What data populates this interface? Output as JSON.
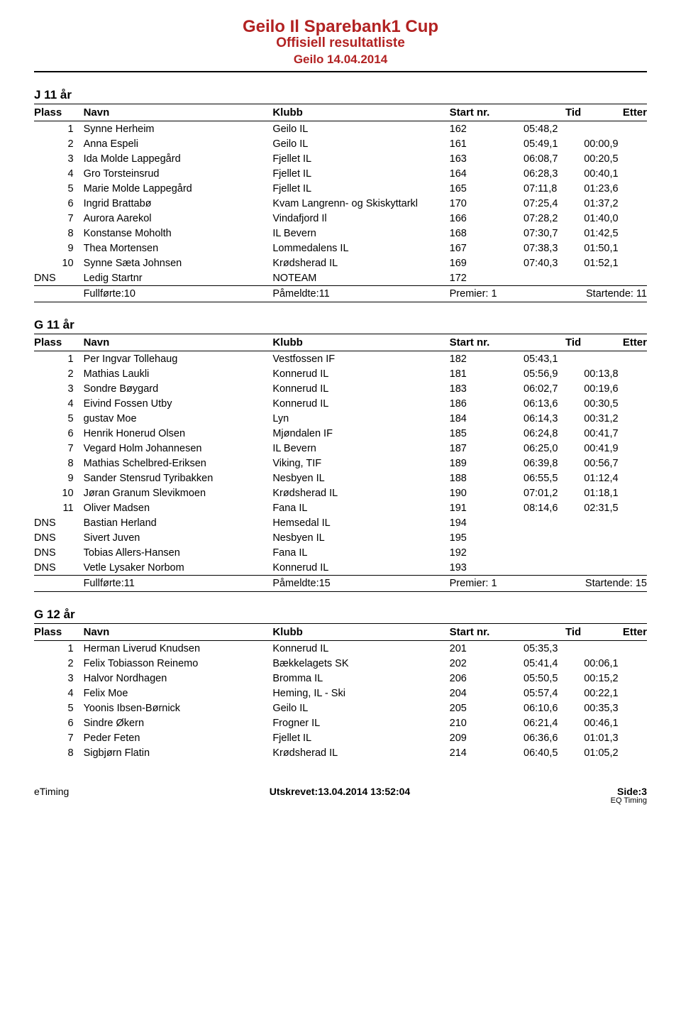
{
  "header": {
    "title": "Geilo Il Sparebank1 Cup",
    "subtitle1": "Offisiell resultatliste",
    "subtitle2": "Geilo 14.04.2014"
  },
  "colors": {
    "title": "#b22222",
    "border": "#000000",
    "bg": "#ffffff"
  },
  "col_headers": {
    "plass": "Plass",
    "navn": "Navn",
    "klubb": "Klubb",
    "start": "Start nr.",
    "tid": "Tid",
    "etter": "Etter"
  },
  "sections": [
    {
      "title": "J 11 år",
      "rows": [
        {
          "plass": "1",
          "navn": "Synne Herheim",
          "klubb": "Geilo IL",
          "start": "162",
          "tid": "05:48,2",
          "etter": ""
        },
        {
          "plass": "2",
          "navn": "Anna Espeli",
          "klubb": "Geilo IL",
          "start": "161",
          "tid": "05:49,1",
          "etter": "00:00,9"
        },
        {
          "plass": "3",
          "navn": "Ida Molde Lappegård",
          "klubb": "Fjellet IL",
          "start": "163",
          "tid": "06:08,7",
          "etter": "00:20,5"
        },
        {
          "plass": "4",
          "navn": "Gro Torsteinsrud",
          "klubb": "Fjellet IL",
          "start": "164",
          "tid": "06:28,3",
          "etter": "00:40,1"
        },
        {
          "plass": "5",
          "navn": "Marie Molde Lappegård",
          "klubb": "Fjellet IL",
          "start": "165",
          "tid": "07:11,8",
          "etter": "01:23,6"
        },
        {
          "plass": "6",
          "navn": "Ingrid Brattabø",
          "klubb": "Kvam Langrenn- og Skiskyttarkl",
          "start": "170",
          "tid": "07:25,4",
          "etter": "01:37,2"
        },
        {
          "plass": "7",
          "navn": "Aurora Aarekol",
          "klubb": "Vindafjord Il",
          "start": "166",
          "tid": "07:28,2",
          "etter": "01:40,0"
        },
        {
          "plass": "8",
          "navn": "Konstanse Moholth",
          "klubb": "IL Bevern",
          "start": "168",
          "tid": "07:30,7",
          "etter": "01:42,5"
        },
        {
          "plass": "9",
          "navn": "Thea Mortensen",
          "klubb": "Lommedalens IL",
          "start": "167",
          "tid": "07:38,3",
          "etter": "01:50,1"
        },
        {
          "plass": "10",
          "navn": "Synne Sæta Johnsen",
          "klubb": "Krødsherad IL",
          "start": "169",
          "tid": "07:40,3",
          "etter": "01:52,1"
        },
        {
          "plass": "DNS",
          "navn": "Ledig Startnr",
          "klubb": "NOTEAM",
          "start": "172",
          "tid": "",
          "etter": ""
        }
      ],
      "summary": {
        "fullforte": "Fullførte:10",
        "pameldte": "Påmeldte:11",
        "premier": "Premier: 1",
        "startende": "Startende: 11"
      }
    },
    {
      "title": "G 11 år",
      "rows": [
        {
          "plass": "1",
          "navn": "Per Ingvar Tollehaug",
          "klubb": "Vestfossen IF",
          "start": "182",
          "tid": "05:43,1",
          "etter": ""
        },
        {
          "plass": "2",
          "navn": "Mathias Laukli",
          "klubb": "Konnerud IL",
          "start": "181",
          "tid": "05:56,9",
          "etter": "00:13,8"
        },
        {
          "plass": "3",
          "navn": "Sondre Bøygard",
          "klubb": "Konnerud IL",
          "start": "183",
          "tid": "06:02,7",
          "etter": "00:19,6"
        },
        {
          "plass": "4",
          "navn": "Eivind Fossen Utby",
          "klubb": "Konnerud IL",
          "start": "186",
          "tid": "06:13,6",
          "etter": "00:30,5"
        },
        {
          "plass": "5",
          "navn": "gustav Moe",
          "klubb": "Lyn",
          "start": "184",
          "tid": "06:14,3",
          "etter": "00:31,2"
        },
        {
          "plass": "6",
          "navn": "Henrik Honerud Olsen",
          "klubb": "Mjøndalen IF",
          "start": "185",
          "tid": "06:24,8",
          "etter": "00:41,7"
        },
        {
          "plass": "7",
          "navn": "Vegard Holm Johannesen",
          "klubb": "IL Bevern",
          "start": "187",
          "tid": "06:25,0",
          "etter": "00:41,9"
        },
        {
          "plass": "8",
          "navn": "Mathias Schelbred-Eriksen",
          "klubb": "Viking, TIF",
          "start": "189",
          "tid": "06:39,8",
          "etter": "00:56,7"
        },
        {
          "plass": "9",
          "navn": "Sander Stensrud Tyribakken",
          "klubb": "Nesbyen IL",
          "start": "188",
          "tid": "06:55,5",
          "etter": "01:12,4"
        },
        {
          "plass": "10",
          "navn": "Jøran Granum Slevikmoen",
          "klubb": "Krødsherad IL",
          "start": "190",
          "tid": "07:01,2",
          "etter": "01:18,1"
        },
        {
          "plass": "11",
          "navn": "Oliver Madsen",
          "klubb": "Fana IL",
          "start": "191",
          "tid": "08:14,6",
          "etter": "02:31,5"
        },
        {
          "plass": "DNS",
          "navn": "Bastian Herland",
          "klubb": "Hemsedal IL",
          "start": "194",
          "tid": "",
          "etter": ""
        },
        {
          "plass": "DNS",
          "navn": "Sivert Juven",
          "klubb": "Nesbyen IL",
          "start": "195",
          "tid": "",
          "etter": ""
        },
        {
          "plass": "DNS",
          "navn": "Tobias Allers-Hansen",
          "klubb": "Fana IL",
          "start": "192",
          "tid": "",
          "etter": ""
        },
        {
          "plass": "DNS",
          "navn": "Vetle Lysaker Norbom",
          "klubb": "Konnerud IL",
          "start": "193",
          "tid": "",
          "etter": ""
        }
      ],
      "summary": {
        "fullforte": "Fullførte:11",
        "pameldte": "Påmeldte:15",
        "premier": "Premier: 1",
        "startende": "Startende: 15"
      }
    },
    {
      "title": "G 12 år",
      "rows": [
        {
          "plass": "1",
          "navn": "Herman Liverud Knudsen",
          "klubb": "Konnerud IL",
          "start": "201",
          "tid": "05:35,3",
          "etter": ""
        },
        {
          "plass": "2",
          "navn": "Felix Tobiasson Reinemo",
          "klubb": "Bækkelagets SK",
          "start": "202",
          "tid": "05:41,4",
          "etter": "00:06,1"
        },
        {
          "plass": "3",
          "navn": "Halvor Nordhagen",
          "klubb": "Bromma IL",
          "start": "206",
          "tid": "05:50,5",
          "etter": "00:15,2"
        },
        {
          "plass": "4",
          "navn": "Felix Moe",
          "klubb": "Heming, IL - Ski",
          "start": "204",
          "tid": "05:57,4",
          "etter": "00:22,1"
        },
        {
          "plass": "5",
          "navn": "Yoonis Ibsen-Børnick",
          "klubb": "Geilo IL",
          "start": "205",
          "tid": "06:10,6",
          "etter": "00:35,3"
        },
        {
          "plass": "6",
          "navn": "Sindre Økern",
          "klubb": "Frogner IL",
          "start": "210",
          "tid": "06:21,4",
          "etter": "00:46,1"
        },
        {
          "plass": "7",
          "navn": "Peder Feten",
          "klubb": "Fjellet IL",
          "start": "209",
          "tid": "06:36,6",
          "etter": "01:01,3"
        },
        {
          "plass": "8",
          "navn": "Sigbjørn Flatin",
          "klubb": "Krødsherad IL",
          "start": "214",
          "tid": "06:40,5",
          "etter": "01:05,2"
        }
      ],
      "summary": null
    }
  ],
  "footer": {
    "left": "eTiming",
    "center": "Utskrevet:13.04.2014 13:52:04",
    "right": "Side:3",
    "right_sub": "EQ Timing"
  }
}
